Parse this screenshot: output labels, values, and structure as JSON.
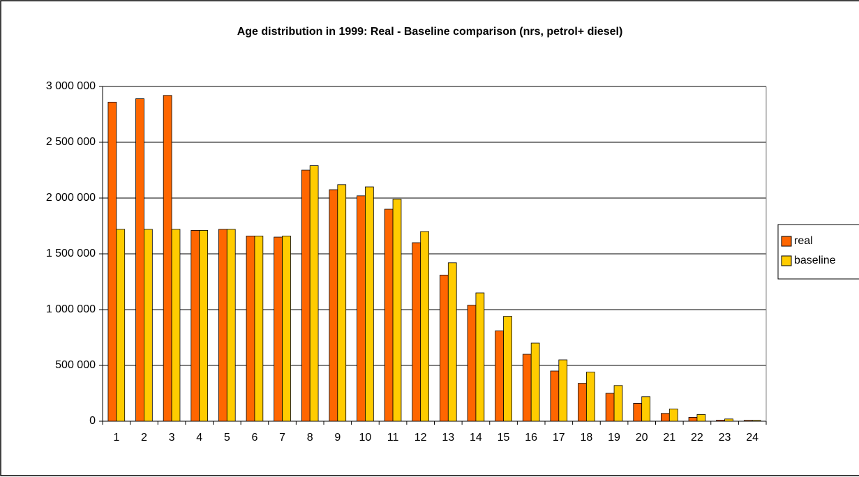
{
  "chart_data": {
    "type": "bar",
    "title": "Age distribution in 1999: Real - Baseline comparison (nrs, petrol+ diesel)",
    "categories": [
      "1",
      "2",
      "3",
      "4",
      "5",
      "6",
      "7",
      "8",
      "9",
      "10",
      "11",
      "12",
      "13",
      "14",
      "15",
      "16",
      "17",
      "18",
      "19",
      "20",
      "21",
      "22",
      "23",
      "24"
    ],
    "series": [
      {
        "name": "real",
        "color": "#ff6600",
        "values": [
          2860000,
          2890000,
          2920000,
          1710000,
          1720000,
          1660000,
          1650000,
          2250000,
          2075000,
          2020000,
          1900000,
          1600000,
          1310000,
          1040000,
          810000,
          600000,
          450000,
          340000,
          250000,
          160000,
          70000,
          35000,
          10000,
          8000
        ]
      },
      {
        "name": "baseline",
        "color": "#ffcc00",
        "values": [
          1720000,
          1720000,
          1720000,
          1710000,
          1720000,
          1660000,
          1660000,
          2290000,
          2120000,
          2100000,
          1990000,
          1700000,
          1420000,
          1150000,
          940000,
          700000,
          550000,
          440000,
          320000,
          220000,
          110000,
          60000,
          20000,
          8000
        ]
      }
    ],
    "ylim": [
      0,
      3000000
    ],
    "yticks": [
      0,
      {
        "value": 500000,
        "label": "500 000"
      },
      {
        "value": 1000000,
        "label": "1 000 000"
      },
      {
        "value": 1500000,
        "label": "1 500 000"
      },
      {
        "value": 2000000,
        "label": "2 000 000"
      },
      {
        "value": 2500000,
        "label": "2 500 000"
      },
      {
        "value": 3000000,
        "label": "3 000 000"
      }
    ],
    "grid": true,
    "legend": "right"
  }
}
